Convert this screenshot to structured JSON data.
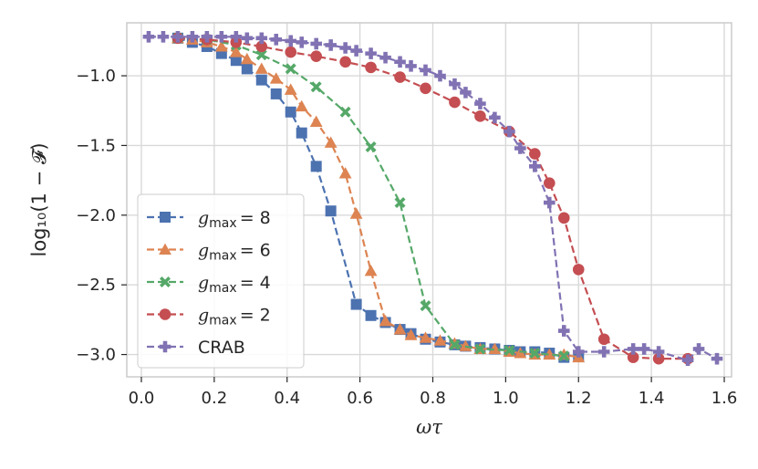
{
  "chart_data": {
    "type": "line",
    "title": "",
    "xlabel": "ωτ",
    "ylabel": "log₁₀(1 − 𝓕)",
    "xlim": [
      -0.04,
      1.62
    ],
    "ylim": [
      -3.16,
      -0.62
    ],
    "xticks": [
      0.0,
      0.2,
      0.4,
      0.6,
      0.8,
      1.0,
      1.2,
      1.4,
      1.6
    ],
    "xtick_labels": [
      "0.0",
      "0.2",
      "0.4",
      "0.6",
      "0.8",
      "1.0",
      "1.2",
      "1.4",
      "1.6"
    ],
    "yticks": [
      -1.0,
      -1.5,
      -2.0,
      -2.5,
      -3.0
    ],
    "ytick_labels": [
      "−1.0",
      "−1.5",
      "−2.0",
      "−2.5",
      "−3.0"
    ],
    "grid": true,
    "legend_position": "lower-left",
    "series": [
      {
        "name": "g_max = 8",
        "legend_symbol": "g",
        "legend_sub": "max",
        "legend_value": "= 8",
        "color": "#4c72b0",
        "marker": "square",
        "x": [
          0.1,
          0.14,
          0.18,
          0.22,
          0.26,
          0.29,
          0.33,
          0.37,
          0.41,
          0.44,
          0.48,
          0.52,
          0.59,
          0.63,
          0.67,
          0.71,
          0.74,
          0.78,
          0.82,
          0.86,
          0.89,
          0.93,
          0.97,
          1.01,
          1.04,
          1.08,
          1.12,
          1.16,
          1.2
        ],
        "y": [
          -0.73,
          -0.76,
          -0.79,
          -0.84,
          -0.89,
          -0.95,
          -1.03,
          -1.13,
          -1.26,
          -1.41,
          -1.65,
          -1.97,
          -2.64,
          -2.72,
          -2.77,
          -2.82,
          -2.85,
          -2.89,
          -2.91,
          -2.93,
          -2.94,
          -2.95,
          -2.96,
          -2.97,
          -2.98,
          -2.98,
          -2.99,
          -3.02,
          -3.01
        ]
      },
      {
        "name": "g_max = 6",
        "legend_symbol": "g",
        "legend_sub": "max",
        "legend_value": "= 6",
        "color": "#dd8452",
        "marker": "triangle",
        "x": [
          0.1,
          0.14,
          0.18,
          0.22,
          0.26,
          0.29,
          0.33,
          0.37,
          0.41,
          0.44,
          0.48,
          0.52,
          0.56,
          0.59,
          0.63,
          0.67,
          0.71,
          0.74,
          0.78,
          0.82,
          0.86,
          0.89,
          0.93,
          0.97,
          1.01,
          1.04,
          1.08,
          1.12,
          1.16,
          1.2
        ],
        "y": [
          -0.73,
          -0.74,
          -0.76,
          -0.79,
          -0.83,
          -0.88,
          -0.95,
          -1.02,
          -1.1,
          -1.22,
          -1.33,
          -1.48,
          -1.7,
          -1.99,
          -2.4,
          -2.76,
          -2.82,
          -2.86,
          -2.88,
          -2.9,
          -2.92,
          -2.94,
          -2.96,
          -2.96,
          -2.98,
          -2.99,
          -3.0,
          -3.0,
          -3.0,
          -3.02
        ]
      },
      {
        "name": "g_max = 4",
        "legend_symbol": "g",
        "legend_sub": "max",
        "legend_value": "= 4",
        "color": "#55a868",
        "marker": "x",
        "x": [
          0.1,
          0.18,
          0.26,
          0.33,
          0.41,
          0.48,
          0.56,
          0.63,
          0.71,
          0.78,
          0.86,
          0.93,
          1.01,
          1.08,
          1.16
        ],
        "y": [
          -0.73,
          -0.74,
          -0.78,
          -0.85,
          -0.95,
          -1.08,
          -1.26,
          -1.51,
          -1.91,
          -2.65,
          -2.93,
          -2.96,
          -2.97,
          -2.99,
          -3.01
        ]
      },
      {
        "name": "g_max = 2",
        "legend_symbol": "g",
        "legend_sub": "max",
        "legend_value": "= 2",
        "color": "#c44e52",
        "marker": "circle",
        "x": [
          0.1,
          0.18,
          0.26,
          0.33,
          0.41,
          0.48,
          0.56,
          0.63,
          0.71,
          0.78,
          0.86,
          0.93,
          1.01,
          1.08,
          1.12,
          1.16,
          1.2,
          1.27,
          1.35,
          1.42,
          1.5
        ],
        "y": [
          -0.73,
          -0.74,
          -0.76,
          -0.79,
          -0.83,
          -0.86,
          -0.9,
          -0.94,
          -1.01,
          -1.09,
          -1.19,
          -1.29,
          -1.4,
          -1.56,
          -1.77,
          -2.02,
          -2.39,
          -2.89,
          -3.02,
          -3.03,
          -3.03
        ]
      },
      {
        "name": "CRAB",
        "legend_symbol": "",
        "legend_sub": "",
        "legend_value": "CRAB",
        "color": "#8172b3",
        "marker": "plus",
        "x": [
          0.02,
          0.06,
          0.1,
          0.14,
          0.18,
          0.22,
          0.26,
          0.29,
          0.33,
          0.37,
          0.41,
          0.44,
          0.48,
          0.52,
          0.56,
          0.59,
          0.63,
          0.67,
          0.71,
          0.74,
          0.78,
          0.82,
          0.86,
          0.89,
          0.93,
          0.97,
          1.01,
          1.04,
          1.08,
          1.12,
          1.16,
          1.2,
          1.27,
          1.35,
          1.38,
          1.42,
          1.5,
          1.53,
          1.58
        ],
        "y": [
          -0.72,
          -0.72,
          -0.72,
          -0.72,
          -0.72,
          -0.72,
          -0.72,
          -0.73,
          -0.73,
          -0.74,
          -0.75,
          -0.76,
          -0.77,
          -0.78,
          -0.8,
          -0.82,
          -0.84,
          -0.87,
          -0.9,
          -0.93,
          -0.96,
          -1.0,
          -1.06,
          -1.12,
          -1.2,
          -1.3,
          -1.4,
          -1.52,
          -1.65,
          -1.91,
          -2.83,
          -2.98,
          -2.98,
          -2.96,
          -2.96,
          -2.98,
          -3.04,
          -2.96,
          -3.03
        ]
      }
    ]
  }
}
